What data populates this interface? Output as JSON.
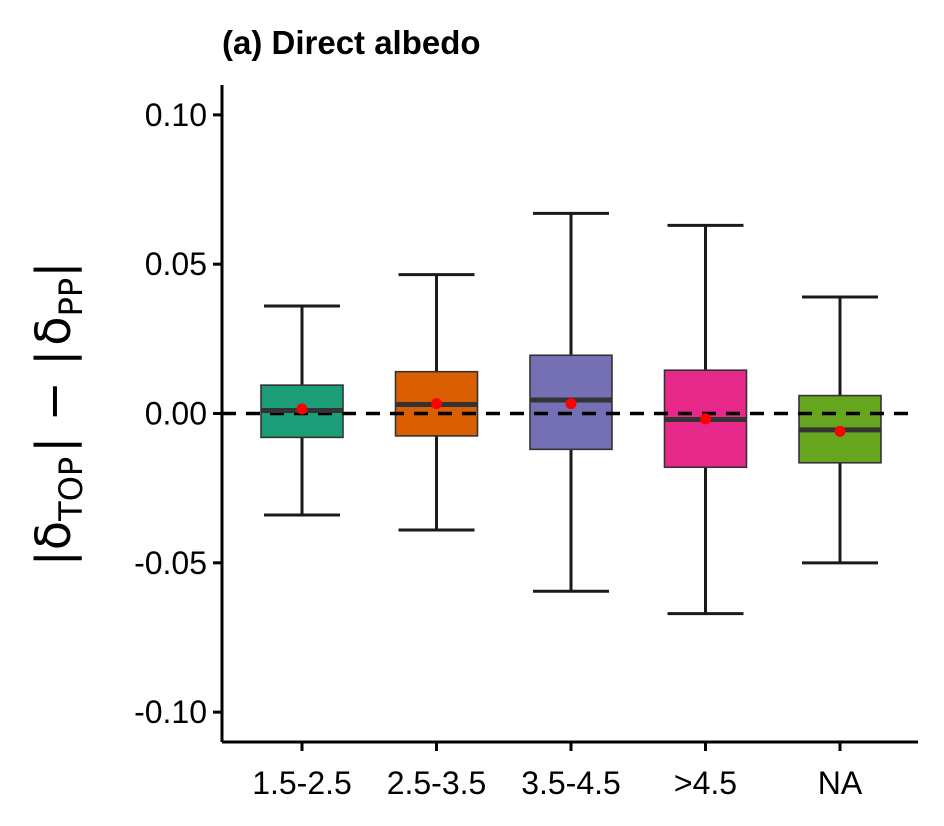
{
  "chart_data": {
    "type": "box",
    "title": "(a) Direct albedo",
    "ylabel": {
      "prefix": "|",
      "delta1": "δ",
      "sub1": "TOP",
      "middle": "| − |",
      "delta2": "δ",
      "sub2": "PP",
      "suffix": "|"
    },
    "xlabel": "",
    "ylim": [
      -0.11,
      0.11
    ],
    "yticks": [
      -0.1,
      -0.05,
      0.0,
      0.05,
      0.1
    ],
    "ytick_labels": [
      "-0.10",
      "-0.05",
      "0.00",
      "0.05",
      "0.10"
    ],
    "reference_line": 0.0,
    "categories": [
      "1.5-2.5",
      "2.5-3.5",
      "3.5-4.5",
      ">4.5",
      "NA"
    ],
    "boxes": [
      {
        "category": "1.5-2.5",
        "whisker_low": -0.034,
        "q1": -0.008,
        "median": 0.001,
        "q3": 0.0095,
        "whisker_high": 0.036,
        "mean": 0.0015,
        "color": "#1b9e77"
      },
      {
        "category": "2.5-3.5",
        "whisker_low": -0.039,
        "q1": -0.0075,
        "median": 0.003,
        "q3": 0.014,
        "whisker_high": 0.0465,
        "mean": 0.0033,
        "color": "#d95f02"
      },
      {
        "category": "3.5-4.5",
        "whisker_low": -0.0595,
        "q1": -0.012,
        "median": 0.0045,
        "q3": 0.0195,
        "whisker_high": 0.067,
        "mean": 0.0033,
        "color": "#7570b3"
      },
      {
        "category": ">4.5",
        "whisker_low": -0.067,
        "q1": -0.018,
        "median": -0.002,
        "q3": 0.0145,
        "whisker_high": 0.063,
        "mean": -0.0018,
        "color": "#e7298a"
      },
      {
        "category": "NA",
        "whisker_low": -0.05,
        "q1": -0.0165,
        "median": -0.0055,
        "q3": 0.006,
        "whisker_high": 0.039,
        "mean": -0.006,
        "color": "#66a61e"
      }
    ],
    "mean_marker_color": "#ff0000",
    "grid": false,
    "legend": "none"
  }
}
